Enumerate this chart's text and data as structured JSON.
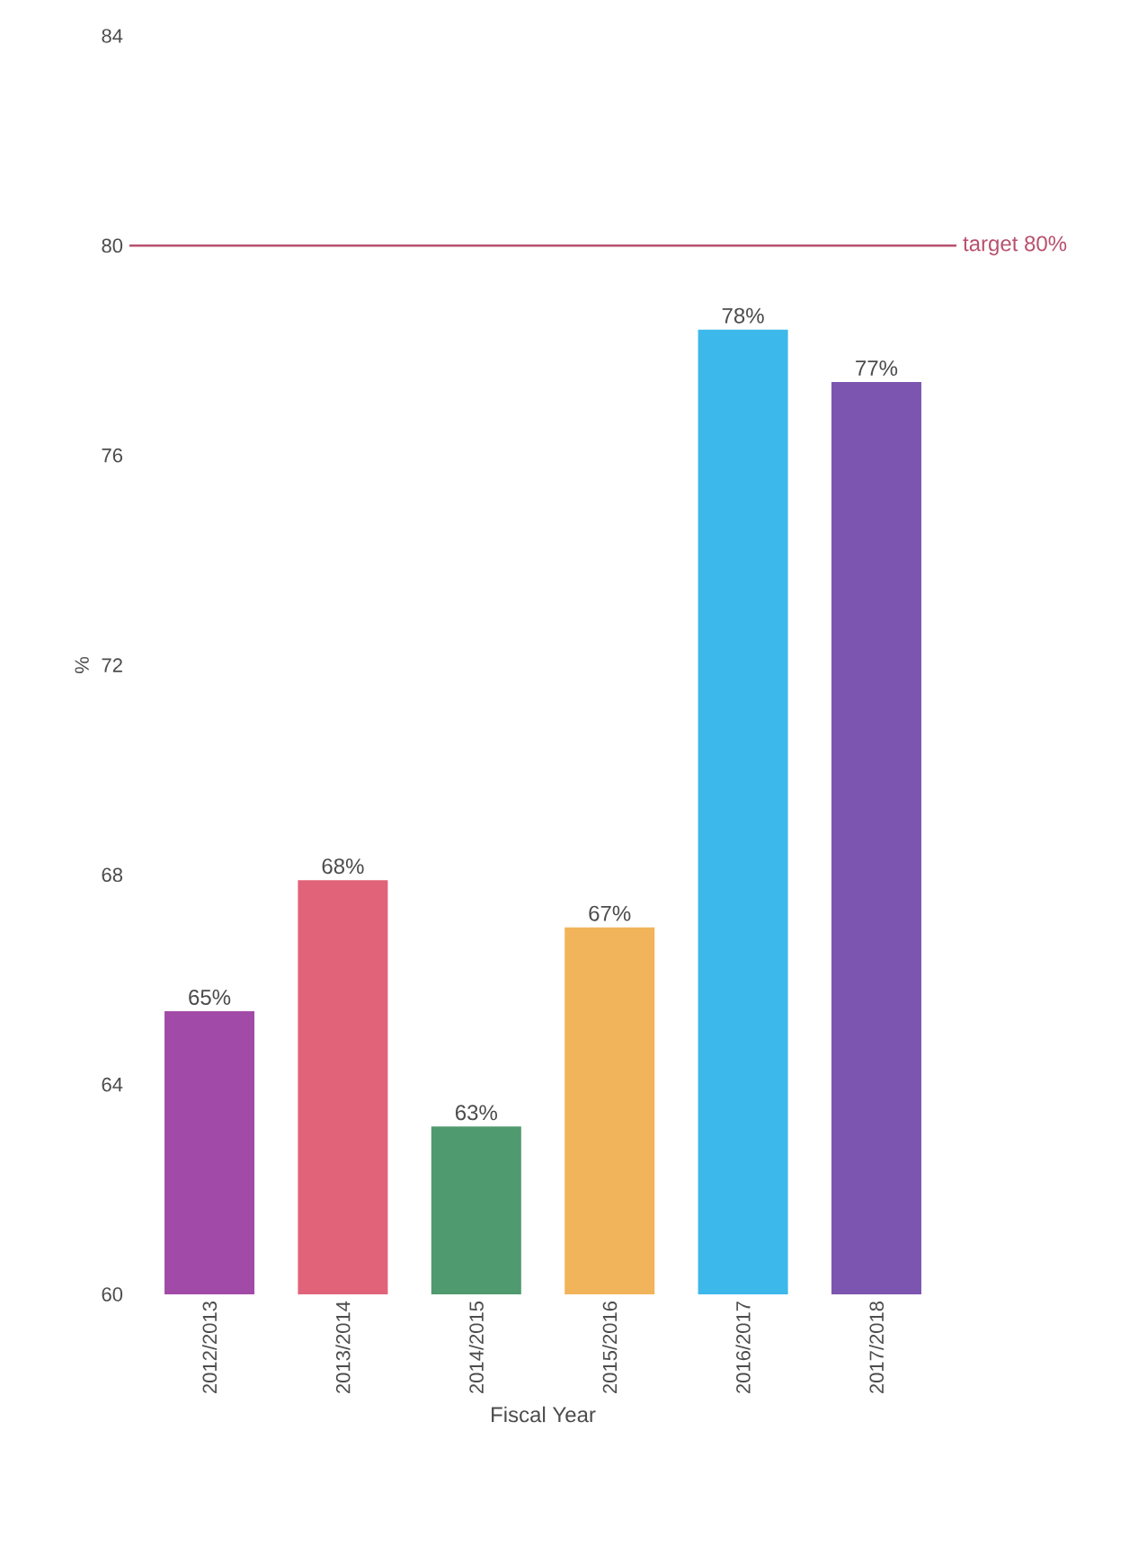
{
  "chart_data": {
    "type": "bar",
    "xlabel": "Fiscal Year",
    "ylabel": "%",
    "categories": [
      "2012/2013",
      "2013/2014",
      "2014/2015",
      "2015/2016",
      "2016/2017",
      "2017/2018"
    ],
    "values": [
      65.4,
      67.9,
      63.2,
      67.0,
      78.4,
      77.4
    ],
    "value_labels": [
      "65%",
      "68%",
      "63%",
      "67%",
      "78%",
      "77%"
    ],
    "colors": [
      "#a24aa8",
      "#e0637a",
      "#4f9a6e",
      "#f2b45a",
      "#3cb8ea",
      "#7c55b0"
    ],
    "ylim": [
      60,
      84
    ],
    "yticks": [
      60,
      64,
      68,
      72,
      76,
      80,
      84
    ],
    "ref_lines": [
      {
        "axis": "y",
        "value": 80,
        "label": "target 80%",
        "color": "#b8506e"
      }
    ],
    "grid": false
  }
}
